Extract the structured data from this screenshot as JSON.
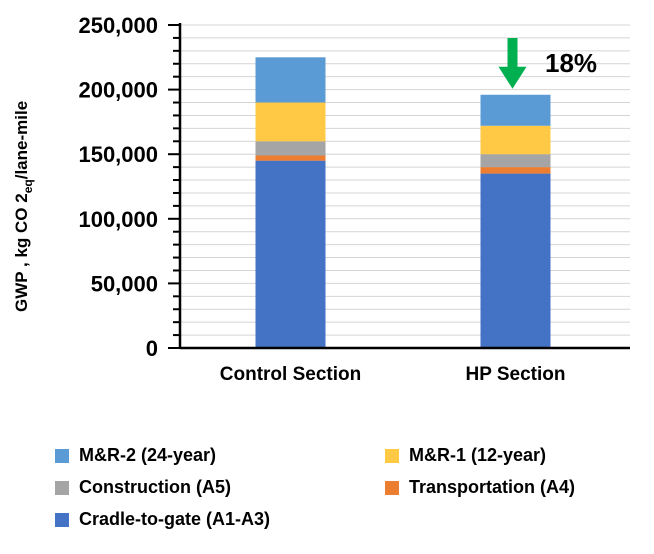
{
  "chart_data": {
    "type": "bar",
    "stacked": true,
    "categories": [
      "Control Section",
      "HP Section"
    ],
    "series": [
      {
        "name": "Cradle-to-gate (A1-A3)",
        "color": "#4472C4",
        "values": [
          145000,
          135000
        ]
      },
      {
        "name": "Transportation (A4)",
        "color": "#ED7D31",
        "values": [
          4000,
          5000
        ]
      },
      {
        "name": "Construction (A5)",
        "color": "#A5A5A5",
        "values": [
          11000,
          10000
        ]
      },
      {
        "name": "M&R-1 (12-year)",
        "color": "#FFC845",
        "values": [
          30000,
          22000
        ]
      },
      {
        "name": "M&R-2 (24-year)",
        "color": "#5B9BD5",
        "values": [
          35000,
          24000
        ]
      }
    ],
    "ylabel_parts": {
      "pre": "GWP , kg CO 2",
      "sub": "eq",
      "post": "/lane-mile"
    },
    "ylim": [
      0,
      250000
    ],
    "yticks": [
      0,
      50000,
      100000,
      150000,
      200000,
      250000
    ],
    "ytick_labels": [
      "0",
      "50,000",
      "100,000",
      "150,000",
      "200,000",
      "250,000"
    ],
    "grid": true,
    "legend_placement": "bottom",
    "annotation": {
      "text": "18%",
      "target_category": "HP Section",
      "arrow_color": "#00B050"
    }
  }
}
